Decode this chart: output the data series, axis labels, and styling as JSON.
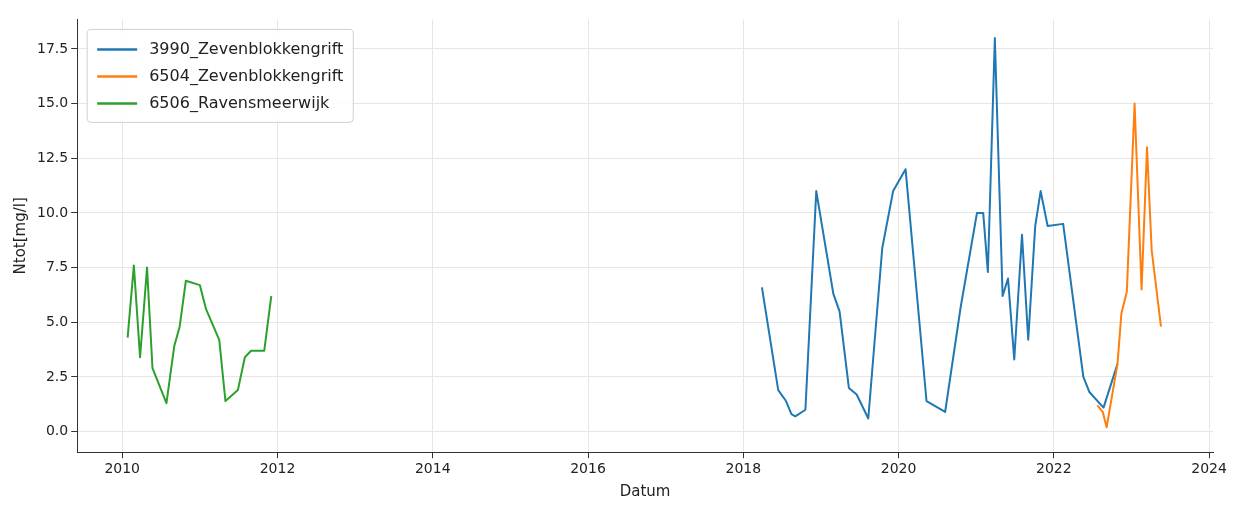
{
  "chart_data": {
    "type": "line",
    "xlabel": "Datum",
    "ylabel": "Ntot[mg/l]",
    "xlim": [
      2009.42,
      2024.05
    ],
    "xticks": [
      2010,
      2012,
      2014,
      2016,
      2018,
      2020,
      2022,
      2024
    ],
    "ylim": [
      -0.94,
      18.85
    ],
    "yticks": [
      {
        "value": 0,
        "label": "0.0"
      },
      {
        "value": 2.5,
        "label": "2.5"
      },
      {
        "value": 5,
        "label": "5.0"
      },
      {
        "value": 7.5,
        "label": "7.5"
      },
      {
        "value": 10,
        "label": "10.0"
      },
      {
        "value": 12.5,
        "label": "12.5"
      },
      {
        "value": 15,
        "label": "15.0"
      },
      {
        "value": 17.5,
        "label": "17.5"
      }
    ],
    "grid": true,
    "legend": "top left",
    "marker": "none",
    "line_style": "solid",
    "series": [
      {
        "name": "3990_Zevenblokkengrift",
        "color": "#1f77b4",
        "x": [
          2018.24,
          2018.45,
          2018.55,
          2018.62,
          2018.67,
          2018.8,
          2018.94,
          2019.16,
          2019.24,
          2019.36,
          2019.46,
          2019.61,
          2019.79,
          2019.93,
          2020.09,
          2020.36,
          2020.6,
          2020.8,
          2021.01,
          2021.09,
          2021.15,
          2021.24,
          2021.34,
          2021.41,
          2021.49,
          2021.59,
          2021.67,
          2021.76,
          2021.83,
          2021.92,
          2022.12,
          2022.38,
          2022.46,
          2022.64,
          2022.82
        ],
        "values": [
          6.6,
          1.9,
          1.4,
          0.8,
          0.7,
          1.0,
          11.0,
          6.3,
          5.5,
          2.0,
          1.7,
          0.6,
          8.4,
          11.0,
          12.0,
          1.4,
          0.9,
          5.7,
          10.0,
          10.0,
          7.3,
          18.0,
          6.2,
          7.0,
          3.3,
          9.0,
          4.2,
          9.4,
          11.0,
          9.4,
          9.5,
          2.5,
          1.8,
          1.1,
          3.1
        ]
      },
      {
        "name": "6504_Zevenblokkengrift",
        "color": "#ff7f0e",
        "x": [
          2022.56,
          2022.63,
          2022.68,
          2022.82,
          2022.87,
          2022.94,
          2023.04,
          2023.13,
          2023.2,
          2023.26,
          2023.38
        ],
        "values": [
          1.2,
          0.9,
          0.2,
          3.1,
          5.4,
          6.4,
          15.0,
          6.5,
          13.0,
          8.3,
          4.8
        ]
      },
      {
        "name": "6506_Ravensmeerwijk",
        "color": "#2ca02c",
        "x": [
          2010.07,
          2010.15,
          2010.23,
          2010.32,
          2010.39,
          2010.57,
          2010.67,
          2010.74,
          2010.82,
          2011.0,
          2011.08,
          2011.25,
          2011.33,
          2011.49,
          2011.58,
          2011.66,
          2011.83,
          2011.92
        ],
        "values": [
          4.3,
          7.6,
          3.4,
          7.5,
          2.9,
          1.3,
          3.9,
          4.8,
          6.9,
          6.7,
          5.6,
          4.2,
          1.4,
          1.9,
          3.4,
          3.7,
          3.7,
          6.2
        ]
      }
    ]
  }
}
